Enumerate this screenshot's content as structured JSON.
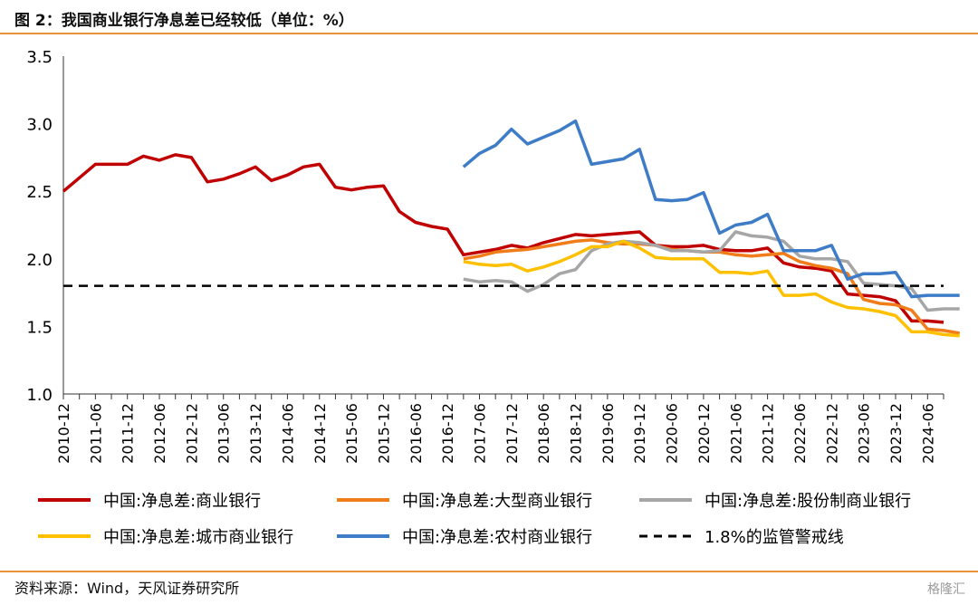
{
  "header": {
    "title": "图 2：我国商业银行净息差已经较低（单位：%）"
  },
  "footer": {
    "source": "资料来源：Wind，天风证券研究所",
    "watermark": "格隆汇"
  },
  "chart_data": {
    "type": "line",
    "title": "图 2：我国商业银行净息差已经较低（单位：%）",
    "ylim": [
      1.0,
      3.5
    ],
    "yticks": [
      "1.0",
      "1.5",
      "2.0",
      "2.5",
      "3.0",
      "3.5"
    ],
    "xlabel": "",
    "ylabel": "",
    "grid": false,
    "legend_position": "bottom",
    "quarters": [
      "2010-12",
      "2011-03",
      "2011-06",
      "2011-09",
      "2011-12",
      "2012-03",
      "2012-06",
      "2012-09",
      "2012-12",
      "2013-03",
      "2013-06",
      "2013-09",
      "2013-12",
      "2014-03",
      "2014-06",
      "2014-09",
      "2014-12",
      "2015-03",
      "2015-06",
      "2015-09",
      "2015-12",
      "2016-03",
      "2016-06",
      "2016-09",
      "2016-12",
      "2017-03",
      "2017-06",
      "2017-09",
      "2017-12",
      "2018-03",
      "2018-06",
      "2018-09",
      "2018-12",
      "2019-03",
      "2019-06",
      "2019-09",
      "2019-12",
      "2020-03",
      "2020-06",
      "2020-09",
      "2020-12",
      "2021-03",
      "2021-06",
      "2021-09",
      "2021-12",
      "2022-03",
      "2022-06",
      "2022-09",
      "2022-12",
      "2023-03",
      "2023-06",
      "2023-09",
      "2023-12",
      "2024-03",
      "2024-06",
      "2024-09"
    ],
    "xtick_labels": [
      "2010-12",
      "2011-06",
      "2011-12",
      "2012-06",
      "2012-12",
      "2013-06",
      "2013-12",
      "2014-06",
      "2014-12",
      "2015-06",
      "2015-12",
      "2016-06",
      "2016-12",
      "2017-06",
      "2017-12",
      "2018-06",
      "2018-12",
      "2019-06",
      "2019-12",
      "2020-06",
      "2020-12",
      "2021-06",
      "2021-12",
      "2022-06",
      "2022-12",
      "2023-06",
      "2023-12",
      "2024-06"
    ],
    "series": [
      {
        "name": "中国:净息差:商业银行",
        "color": "#c00000",
        "dash": false,
        "start": 0,
        "values": [
          2.5,
          2.6,
          2.7,
          2.7,
          2.7,
          2.76,
          2.73,
          2.77,
          2.75,
          2.57,
          2.59,
          2.63,
          2.68,
          2.58,
          2.62,
          2.68,
          2.7,
          2.53,
          2.51,
          2.53,
          2.54,
          2.35,
          2.27,
          2.24,
          2.22,
          2.03,
          2.05,
          2.07,
          2.1,
          2.08,
          2.12,
          2.15,
          2.18,
          2.17,
          2.18,
          2.19,
          2.2,
          2.1,
          2.09,
          2.09,
          2.1,
          2.07,
          2.06,
          2.06,
          2.08,
          1.97,
          1.94,
          1.93,
          1.91,
          1.74,
          1.73,
          1.72,
          1.69,
          1.54,
          1.54,
          1.53
        ]
      },
      {
        "name": "中国:净息差:大型商业银行",
        "color": "#f07c1a",
        "dash": false,
        "start": 25,
        "values": [
          2.0,
          2.02,
          2.05,
          2.06,
          2.07,
          2.09,
          2.11,
          2.13,
          2.14,
          2.12,
          2.11,
          2.11,
          2.1,
          2.07,
          2.06,
          2.05,
          2.05,
          2.03,
          2.02,
          2.03,
          2.04,
          1.98,
          1.95,
          1.93,
          1.89,
          1.7,
          1.67,
          1.66,
          1.62,
          1.48,
          1.47,
          1.45
        ]
      },
      {
        "name": "中国:净息差:股份制商业银行",
        "color": "#a6a6a6",
        "dash": false,
        "start": 25,
        "values": [
          1.85,
          1.83,
          1.84,
          1.83,
          1.76,
          1.81,
          1.89,
          1.92,
          2.06,
          2.11,
          2.13,
          2.12,
          2.1,
          2.06,
          2.06,
          2.05,
          2.06,
          2.2,
          2.17,
          2.16,
          2.13,
          2.02,
          2.0,
          2.0,
          1.98,
          1.82,
          1.81,
          1.8,
          1.78,
          1.62,
          1.63,
          1.63
        ]
      },
      {
        "name": "中国:净息差:城市商业银行",
        "color": "#ffc000",
        "dash": false,
        "start": 25,
        "values": [
          1.98,
          1.96,
          1.95,
          1.96,
          1.91,
          1.94,
          1.98,
          2.03,
          2.09,
          2.09,
          2.13,
          2.08,
          2.01,
          2.0,
          2.0,
          2.0,
          1.9,
          1.9,
          1.89,
          1.91,
          1.73,
          1.73,
          1.74,
          1.68,
          1.64,
          1.63,
          1.61,
          1.58,
          1.46,
          1.46,
          1.44,
          1.43
        ]
      },
      {
        "name": "中国:净息差:农村商业银行",
        "color": "#3e7cc7",
        "dash": false,
        "start": 25,
        "values": [
          2.68,
          2.78,
          2.84,
          2.96,
          2.85,
          2.9,
          2.95,
          3.02,
          2.7,
          2.72,
          2.74,
          2.81,
          2.44,
          2.43,
          2.44,
          2.49,
          2.19,
          2.25,
          2.27,
          2.33,
          2.06,
          2.06,
          2.06,
          2.1,
          1.85,
          1.89,
          1.89,
          1.9,
          1.72,
          1.73,
          1.73,
          1.73
        ]
      },
      {
        "name": "1.8%的监管警戒线",
        "color": "#000000",
        "dash": true,
        "start": 0,
        "constant": 1.8
      }
    ]
  }
}
